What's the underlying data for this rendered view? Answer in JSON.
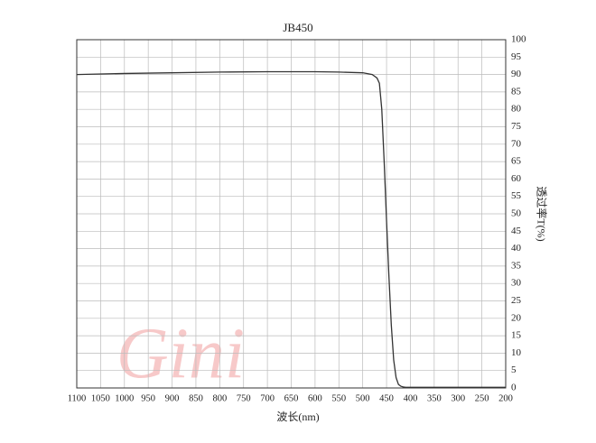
{
  "chart_data": {
    "type": "line",
    "title": "JB450",
    "x_label": "波长(nm)",
    "y_label": "透过率T(%)",
    "watermark": "Gini",
    "x": [
      1100,
      1000,
      900,
      800,
      700,
      600,
      550,
      500,
      480,
      470,
      465,
      460,
      455,
      450,
      445,
      440,
      435,
      430,
      425,
      420,
      415,
      410,
      300,
      200
    ],
    "series": [
      {
        "name": "JB450",
        "color": "#333333",
        "values": [
          90.0,
          90.3,
          90.5,
          90.7,
          90.8,
          90.8,
          90.7,
          90.5,
          90.0,
          89.0,
          87.5,
          80,
          65,
          48,
          32,
          18,
          8,
          3,
          1,
          0.5,
          0.3,
          0.2,
          0.2,
          0.2
        ]
      }
    ],
    "xlim": [
      1100,
      200
    ],
    "ylim": [
      0,
      100
    ],
    "xticks": [
      1100,
      1050,
      1000,
      950,
      900,
      850,
      800,
      750,
      700,
      650,
      600,
      550,
      500,
      450,
      400,
      350,
      300,
      250,
      200
    ],
    "yticks": [
      0,
      5,
      10,
      15,
      20,
      25,
      30,
      35,
      40,
      45,
      50,
      55,
      60,
      65,
      70,
      75,
      80,
      85,
      90,
      95,
      100
    ],
    "grid": true
  }
}
